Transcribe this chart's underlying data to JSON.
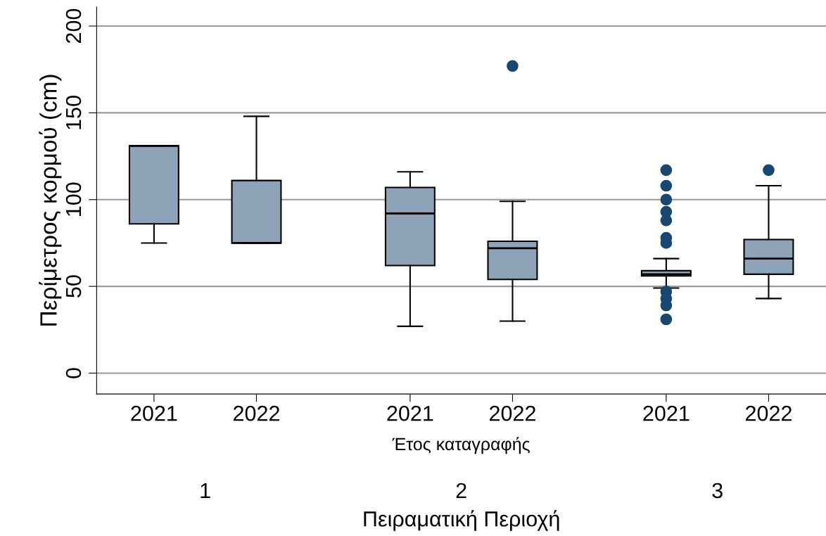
{
  "chart_data": {
    "type": "box",
    "categories": [
      "2021",
      "2022",
      "2021",
      "2022",
      "2021",
      "2022"
    ],
    "boxes": [
      {
        "low": 75,
        "q1": 86,
        "median": 131,
        "q3": 131,
        "high": 131
      },
      {
        "low": 75,
        "q1": 75,
        "median": 75,
        "q3": 111,
        "high": 148
      },
      {
        "low": 27,
        "q1": 62,
        "median": 92,
        "q3": 107,
        "high": 116
      },
      {
        "low": 30,
        "q1": 54,
        "median": 72,
        "q3": 76,
        "high": 99,
        "outliers": [
          177
        ]
      },
      {
        "low": 49,
        "q1": 56,
        "median": 57,
        "q3": 59,
        "high": 66,
        "outliers": [
          117,
          108,
          100,
          93,
          88,
          78,
          75,
          47,
          43,
          39,
          31
        ]
      },
      {
        "low": 43,
        "q1": 57,
        "median": 66,
        "q3": 77,
        "high": 108,
        "outliers": [
          117
        ]
      }
    ],
    "colors": [
      "#8ea2b8",
      "#8ea2b8",
      "#8ea2b8",
      "#8ea2b8",
      "#8ea2b8",
      "#8ea2b8"
    ],
    "color": "#1a476f",
    "ylabel": "Περίμετρος κορμού (cm)",
    "xlabel": "Έτος καταγραφής",
    "annotations": [
      "1",
      "2",
      "3",
      "Πειραματική Περιοχή"
    ],
    "ylim": [
      -12,
      211
    ],
    "yticks": [
      0,
      50,
      100,
      150,
      200
    ],
    "grid": "y"
  }
}
